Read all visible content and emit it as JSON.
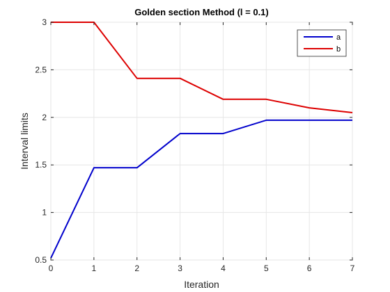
{
  "chart_data": {
    "type": "line",
    "title": "Golden section Method (l = 0.1)",
    "xlabel": "Iteration",
    "ylabel": "Interval limits",
    "xlim": [
      0,
      7
    ],
    "ylim": [
      0.5,
      3
    ],
    "x_ticks": [
      0,
      1,
      2,
      3,
      4,
      5,
      6,
      7
    ],
    "y_ticks": [
      0.5,
      1,
      1.5,
      2,
      2.5,
      3
    ],
    "y_tick_labels": [
      "0.5",
      "1",
      "1.5",
      "2",
      "2.5",
      "3"
    ],
    "grid": true,
    "legend_position": "top-right",
    "x": [
      0,
      1,
      2,
      3,
      4,
      5,
      6,
      7
    ],
    "series": [
      {
        "name": "a",
        "color": "#0000cc",
        "values": [
          0.52,
          1.47,
          1.47,
          1.83,
          1.83,
          1.97,
          1.97,
          1.97
        ]
      },
      {
        "name": "b",
        "color": "#dd0000",
        "values": [
          3.0,
          3.0,
          2.41,
          2.41,
          2.19,
          2.19,
          2.1,
          2.05
        ]
      }
    ]
  }
}
